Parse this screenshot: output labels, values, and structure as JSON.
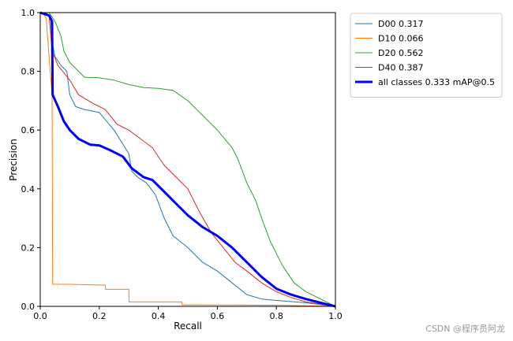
{
  "chart_data": {
    "type": "line",
    "xlabel": "Recall",
    "ylabel": "Precision",
    "xlim": [
      0,
      1
    ],
    "ylim": [
      0,
      1
    ],
    "xticks": [
      "0.0",
      "0.2",
      "0.4",
      "0.6",
      "0.8",
      "1.0"
    ],
    "yticks": [
      "0.0",
      "0.2",
      "0.4",
      "0.6",
      "0.8",
      "1.0"
    ],
    "grid": false,
    "legend_position": "outside-right-top",
    "series": [
      {
        "name": "D00 0.317",
        "color": "#1f77b4",
        "width": 1,
        "points": [
          [
            0,
            1.0
          ],
          [
            0.02,
            1.0
          ],
          [
            0.035,
            0.98
          ],
          [
            0.04,
            0.9
          ],
          [
            0.05,
            0.85
          ],
          [
            0.07,
            0.82
          ],
          [
            0.09,
            0.8
          ],
          [
            0.1,
            0.72
          ],
          [
            0.12,
            0.68
          ],
          [
            0.15,
            0.67
          ],
          [
            0.2,
            0.66
          ],
          [
            0.25,
            0.6
          ],
          [
            0.3,
            0.52
          ],
          [
            0.31,
            0.46
          ],
          [
            0.33,
            0.44
          ],
          [
            0.36,
            0.42
          ],
          [
            0.39,
            0.38
          ],
          [
            0.42,
            0.3
          ],
          [
            0.45,
            0.24
          ],
          [
            0.5,
            0.2
          ],
          [
            0.55,
            0.15
          ],
          [
            0.6,
            0.12
          ],
          [
            0.65,
            0.08
          ],
          [
            0.7,
            0.04
          ],
          [
            0.75,
            0.025
          ],
          [
            0.8,
            0.02
          ],
          [
            0.9,
            0.012
          ],
          [
            1.0,
            0.0
          ]
        ]
      },
      {
        "name": "D10 0.066",
        "color": "#ff7f0e",
        "width": 1,
        "points": [
          [
            0,
            1.0
          ],
          [
            0.01,
            1.0
          ],
          [
            0.02,
            0.98
          ],
          [
            0.03,
            0.85
          ],
          [
            0.04,
            0.72
          ],
          [
            0.042,
            0.075
          ],
          [
            0.1,
            0.075
          ],
          [
            0.22,
            0.072
          ],
          [
            0.221,
            0.058
          ],
          [
            0.3,
            0.058
          ],
          [
            0.301,
            0.015
          ],
          [
            0.48,
            0.015
          ],
          [
            0.481,
            0.005
          ],
          [
            0.8,
            0.004
          ],
          [
            1.0,
            0.0
          ]
        ]
      },
      {
        "name": "D20 0.562",
        "color": "#2ca02c",
        "width": 1,
        "points": [
          [
            0,
            1.0
          ],
          [
            0.03,
            1.0
          ],
          [
            0.05,
            0.97
          ],
          [
            0.07,
            0.92
          ],
          [
            0.08,
            0.87
          ],
          [
            0.1,
            0.83
          ],
          [
            0.13,
            0.8
          ],
          [
            0.15,
            0.78
          ],
          [
            0.2,
            0.778
          ],
          [
            0.25,
            0.77
          ],
          [
            0.3,
            0.755
          ],
          [
            0.35,
            0.745
          ],
          [
            0.4,
            0.742
          ],
          [
            0.45,
            0.735
          ],
          [
            0.5,
            0.7
          ],
          [
            0.55,
            0.65
          ],
          [
            0.6,
            0.6
          ],
          [
            0.65,
            0.54
          ],
          [
            0.67,
            0.5
          ],
          [
            0.7,
            0.42
          ],
          [
            0.73,
            0.36
          ],
          [
            0.75,
            0.3
          ],
          [
            0.78,
            0.22
          ],
          [
            0.82,
            0.14
          ],
          [
            0.86,
            0.08
          ],
          [
            0.9,
            0.05
          ],
          [
            0.95,
            0.025
          ],
          [
            1.0,
            0.0
          ]
        ]
      },
      {
        "name": "D40 0.387",
        "color": "#d62728",
        "width": 1,
        "points": [
          [
            0,
            1.0
          ],
          [
            0.03,
            0.99
          ],
          [
            0.04,
            0.87
          ],
          [
            0.06,
            0.82
          ],
          [
            0.1,
            0.77
          ],
          [
            0.13,
            0.72
          ],
          [
            0.18,
            0.69
          ],
          [
            0.22,
            0.67
          ],
          [
            0.26,
            0.62
          ],
          [
            0.3,
            0.6
          ],
          [
            0.34,
            0.57
          ],
          [
            0.38,
            0.54
          ],
          [
            0.42,
            0.48
          ],
          [
            0.46,
            0.44
          ],
          [
            0.5,
            0.4
          ],
          [
            0.54,
            0.32
          ],
          [
            0.58,
            0.25
          ],
          [
            0.62,
            0.2
          ],
          [
            0.66,
            0.15
          ],
          [
            0.7,
            0.12
          ],
          [
            0.75,
            0.08
          ],
          [
            0.8,
            0.05
          ],
          [
            0.85,
            0.03
          ],
          [
            0.9,
            0.015
          ],
          [
            1.0,
            0.0
          ]
        ]
      },
      {
        "name": "all classes 0.333 mAP@0.5",
        "color": "#0000ff",
        "width": 3,
        "points": [
          [
            0,
            1.0
          ],
          [
            0.03,
            0.99
          ],
          [
            0.04,
            0.97
          ],
          [
            0.042,
            0.72
          ],
          [
            0.06,
            0.68
          ],
          [
            0.08,
            0.63
          ],
          [
            0.1,
            0.6
          ],
          [
            0.13,
            0.57
          ],
          [
            0.17,
            0.55
          ],
          [
            0.2,
            0.548
          ],
          [
            0.24,
            0.53
          ],
          [
            0.28,
            0.51
          ],
          [
            0.31,
            0.47
          ],
          [
            0.35,
            0.44
          ],
          [
            0.38,
            0.43
          ],
          [
            0.42,
            0.39
          ],
          [
            0.46,
            0.35
          ],
          [
            0.5,
            0.31
          ],
          [
            0.55,
            0.27
          ],
          [
            0.6,
            0.24
          ],
          [
            0.65,
            0.2
          ],
          [
            0.7,
            0.15
          ],
          [
            0.75,
            0.1
          ],
          [
            0.8,
            0.06
          ],
          [
            0.85,
            0.04
          ],
          [
            0.9,
            0.025
          ],
          [
            0.95,
            0.012
          ],
          [
            1.0,
            0.0
          ]
        ]
      }
    ]
  },
  "watermark": "CSDN @程序员阿龙"
}
